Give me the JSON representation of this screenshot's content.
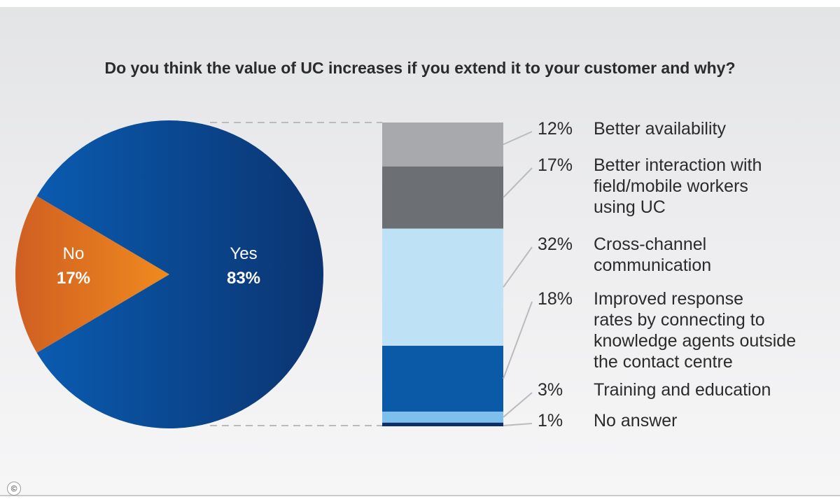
{
  "title": "Do you think the value of UC increases if you extend it to your customer and why?",
  "copyright_symbol": "©",
  "colors": {
    "pie_yes_light": "#0a5bb0",
    "pie_yes_dark": "#0b3470",
    "pie_no_light": "#f08a1e",
    "pie_no_dark": "#cf5f22",
    "connector": "#b9bbbe",
    "text": "#2b2b2b",
    "white": "#ffffff"
  },
  "chart_data": [
    {
      "type": "pie",
      "slices": [
        {
          "label": "Yes",
          "value": 83,
          "value_label": "83%",
          "color": "#0a4a96"
        },
        {
          "label": "No",
          "value": 17,
          "value_label": "17%",
          "color": "#e07420"
        }
      ]
    },
    {
      "type": "bar",
      "stacked": true,
      "segments": [
        {
          "label": "Better availability",
          "value": 12,
          "value_label": "12%",
          "color": "#a7a9ac"
        },
        {
          "label": "Better interaction with field/mobile workers using UC",
          "lines": [
            "Better interaction with",
            "field/mobile workers",
            "using UC"
          ],
          "value": 17,
          "value_label": "17%",
          "color": "#6c6f73"
        },
        {
          "label": "Cross-channel communication",
          "lines": [
            "Cross-channel",
            "communication"
          ],
          "value": 32,
          "value_label": "32%",
          "color": "#bfe1f6"
        },
        {
          "label": "Improved response rates by connecting to knowledge agents outside the contact centre",
          "lines": [
            "Improved response",
            "rates by connecting to",
            "knowledge agents outside",
            "the contact centre"
          ],
          "value": 18,
          "value_label": "18%",
          "color": "#0a5aa8"
        },
        {
          "label": "Training and education",
          "value": 3,
          "value_label": "3%",
          "color": "#7dc0ee"
        },
        {
          "label": "No answer",
          "value": 1,
          "value_label": "1%",
          "color": "#0b2f6a"
        }
      ]
    }
  ]
}
